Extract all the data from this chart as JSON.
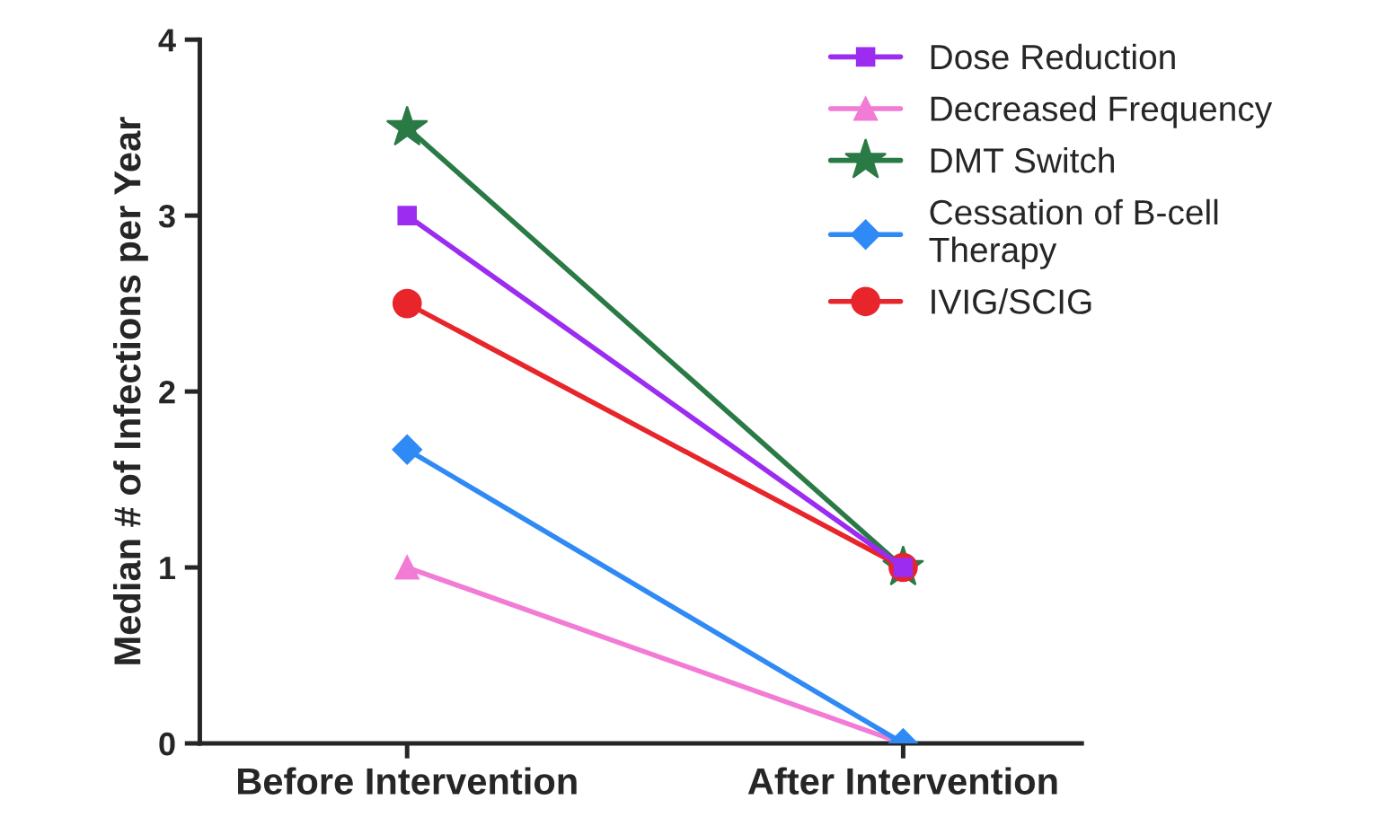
{
  "chart_data": {
    "type": "line",
    "ylabel": "Median # of Infections per Year",
    "categories": [
      "Before Intervention",
      "After Intervention"
    ],
    "ylim": [
      0,
      4
    ],
    "yticks": [
      0,
      1,
      2,
      3,
      4
    ],
    "grid": false,
    "legend": "top right",
    "line_style": "solid",
    "series": [
      {
        "name": "Dose Reduction",
        "color": "#9b2cf0",
        "marker": "square",
        "values": [
          3,
          1
        ]
      },
      {
        "name": "Decreased Frequency",
        "color": "#f27bd6",
        "marker": "triangle",
        "values": [
          1,
          0
        ]
      },
      {
        "name": "DMT Switch",
        "color": "#2a7a46",
        "marker": "star",
        "values": [
          3.5,
          1
        ]
      },
      {
        "name": "Cessation of B-cell\nTherapy",
        "color": "#2f8af5",
        "marker": "diamond",
        "values": [
          1.67,
          0
        ]
      },
      {
        "name": "IVIG/SCIG",
        "color": "#e8252b",
        "marker": "circle",
        "values": [
          2.5,
          1
        ]
      }
    ]
  }
}
